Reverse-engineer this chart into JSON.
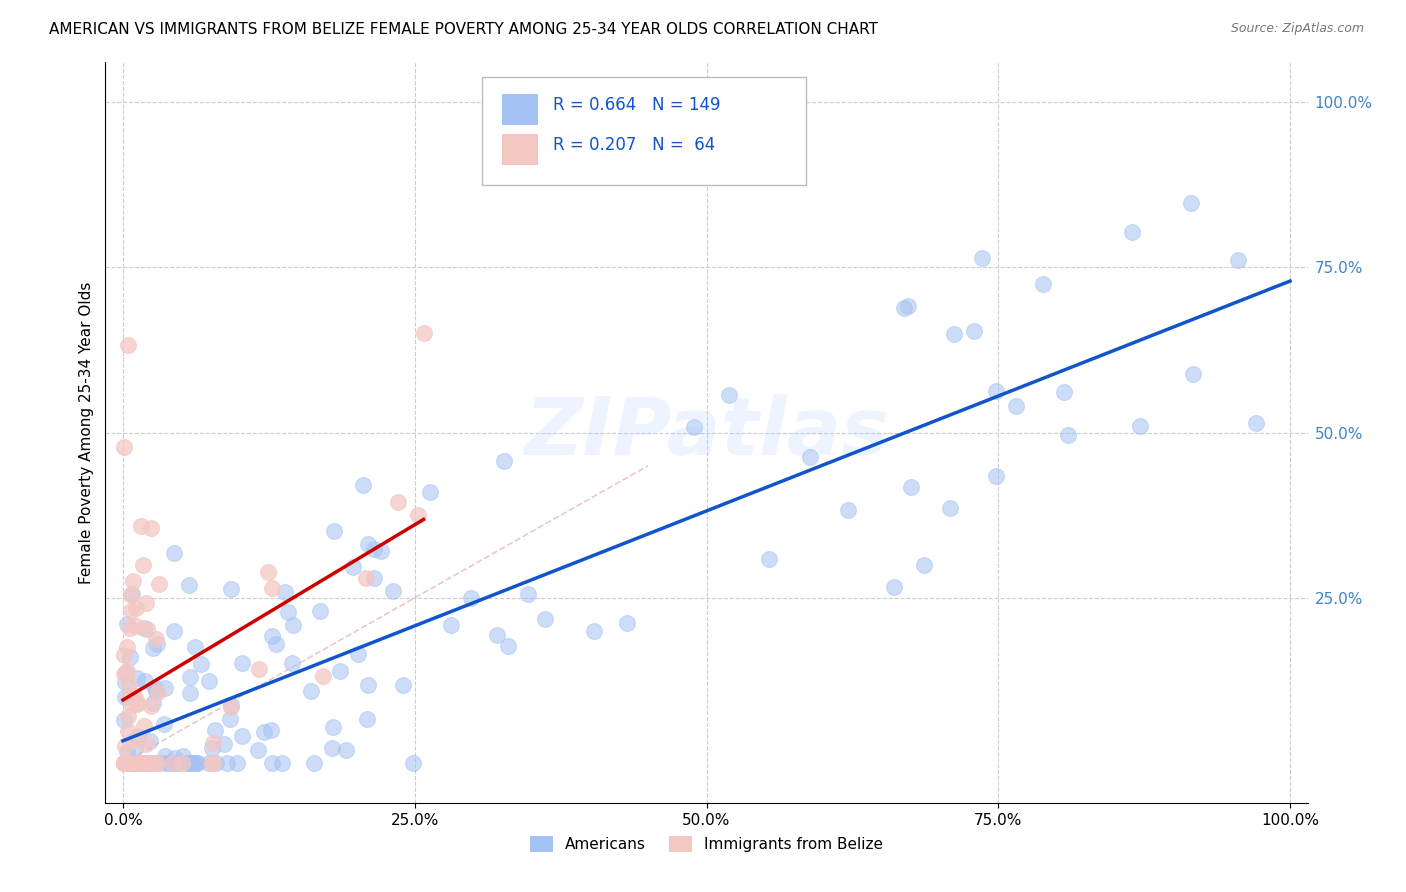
{
  "title": "AMERICAN VS IMMIGRANTS FROM BELIZE FEMALE POVERTY AMONG 25-34 YEAR OLDS CORRELATION CHART",
  "source": "Source: ZipAtlas.com",
  "ylabel": "Female Poverty Among 25-34 Year Olds",
  "xlim": [
    -0.02,
    1.02
  ],
  "ylim": [
    -0.06,
    1.06
  ],
  "plot_xlim": [
    0.0,
    1.0
  ],
  "plot_ylim": [
    0.0,
    1.0
  ],
  "legend_labels": [
    "Americans",
    "Immigrants from Belize"
  ],
  "R_american": 0.664,
  "N_american": 149,
  "R_belize": 0.207,
  "N_belize": 64,
  "american_color": "#a4c2f4",
  "belize_color": "#f4c7c3",
  "american_line_color": "#1155cc",
  "belize_line_color": "#cc0000",
  "diagonal_color": "#dd9999",
  "background_color": "#ffffff",
  "grid_color": "#cccccc",
  "watermark": "ZIPatlas",
  "right_tick_color": "#3d85c8",
  "title_fontsize": 11,
  "axis_fontsize": 11,
  "marker_size": 130
}
